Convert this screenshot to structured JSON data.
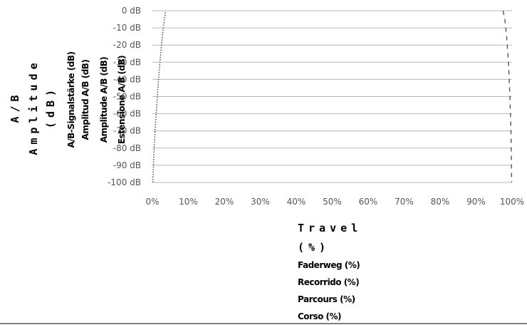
{
  "chart_data": {
    "type": "line",
    "title": "",
    "xlabel": [
      "Travel",
      "(%)",
      "Faderweg (%)",
      "Recorrido (%)",
      "Parcours (%)",
      "Corso (%)"
    ],
    "ylabel": [
      "A/B",
      "Amplitude",
      "(dB)",
      "A/B-Signalstärke (dB)",
      "Amplitud A/B (dB)",
      "Amplitude A/B (dB)",
      "Estensione A/B (dB)"
    ],
    "x_ticks": [
      "0%",
      "10%",
      "20%",
      "30%",
      "40%",
      "50%",
      "60%",
      "70%",
      "80%",
      "90%",
      "100%"
    ],
    "y_ticks": [
      "0 dB",
      "-10 dB",
      "-20 dB",
      "-30 dB",
      "-40 dB",
      "-50 dB",
      "-60 dB",
      "-70 dB",
      "-80 dB",
      "-90 dB",
      "-100 dB"
    ],
    "xlim": [
      0,
      100
    ],
    "ylim": [
      -100,
      0
    ],
    "grid": "horizontal",
    "series": [
      {
        "style": "dotted",
        "color": "#555555",
        "x": [
          0.1,
          0.3,
          0.5,
          0.8,
          1.2,
          1.7,
          2.3,
          3.0,
          3.7
        ],
        "y": [
          -100,
          -90,
          -80,
          -68,
          -55,
          -40,
          -25,
          -10,
          0
        ]
      },
      {
        "style": "dashed",
        "color": "#555555",
        "x": [
          97.5,
          98.0,
          98.5,
          99.0,
          99.4,
          99.7,
          99.9
        ],
        "y": [
          0,
          -5,
          -15,
          -30,
          -50,
          -70,
          -100
        ]
      }
    ]
  }
}
